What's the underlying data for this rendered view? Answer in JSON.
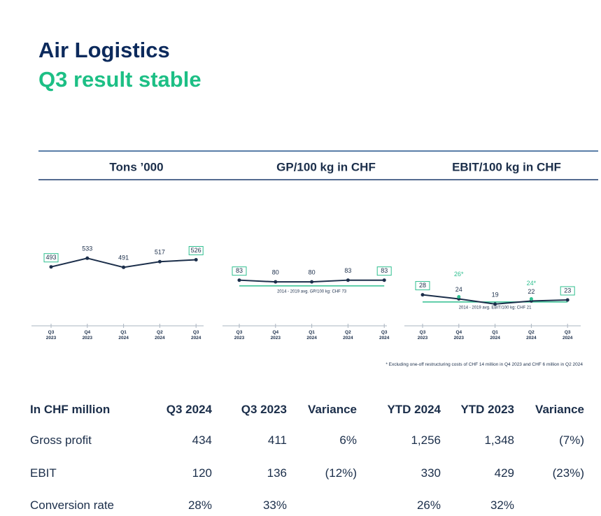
{
  "title": "Air Logistics",
  "subtitle": "Q3 result stable",
  "footnote": "* Excluding one-off restructuring costs of CHF 14 million in Q4 2023 and CHF 6 million in Q2 2024",
  "chart_data": [
    {
      "type": "line",
      "title": "Tons ’000",
      "categories": [
        "Q3 2023",
        "Q4 2023",
        "Q1 2024",
        "Q2 2024",
        "Q3 2024"
      ],
      "ylim": [
        240,
        660
      ],
      "series": [
        {
          "color": "#1b2e4a",
          "values": [
            493,
            533,
            491,
            517,
            526
          ]
        }
      ]
    },
    {
      "type": "line",
      "title": "GP/100 kg in CHF",
      "categories": [
        "Q3 2023",
        "Q4 2023",
        "Q1 2024",
        "Q2 2024",
        "Q3 2024"
      ],
      "ylim": [
        10,
        170
      ],
      "reference": {
        "value": 73,
        "label": "2014 - 2019 avg. GP/100 kg: CHF 73",
        "color": "#2fbf8f"
      },
      "series": [
        {
          "color": "#1b2e4a",
          "values": [
            83,
            80,
            80,
            83,
            83
          ]
        }
      ]
    },
    {
      "type": "line",
      "title": "EBIT/100 kg in CHF",
      "categories": [
        "Q3 2023",
        "Q4 2023",
        "Q1 2024",
        "Q2 2024",
        "Q3 2024"
      ],
      "ylim": [
        2,
        90
      ],
      "reference": {
        "value": 21,
        "label": "2014 - 2019 avg. EBIT/100 kg: CHF 21",
        "color": "#2fbf8f"
      },
      "series": [
        {
          "color": "#1b2e4a",
          "values": [
            28,
            24,
            19,
            22,
            23
          ]
        },
        {
          "color": "#2fbf8f",
          "values": [
            null,
            26,
            null,
            24,
            null
          ],
          "value_labels": [
            null,
            "26*",
            null,
            "24*",
            null
          ]
        }
      ]
    }
  ],
  "table": {
    "header": [
      "In CHF million",
      "Q3 2024",
      "Q3 2023",
      "Variance",
      "YTD 2024",
      "YTD 2023",
      "Variance"
    ],
    "rows": [
      [
        "Gross profit",
        "434",
        "411",
        "6%",
        "1,256",
        "1,348",
        "(7%)"
      ],
      [
        "EBIT",
        "120",
        "136",
        "(12%)",
        "330",
        "429",
        "(23%)"
      ],
      [
        "Conversion rate",
        "28%",
        "33%",
        null,
        "26%",
        "32%",
        null
      ]
    ]
  }
}
